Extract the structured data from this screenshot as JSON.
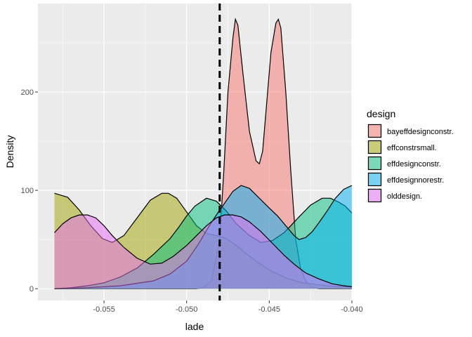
{
  "chart_data": {
    "type": "area",
    "subtype": "density",
    "xlabel": "lade",
    "ylabel": "Density",
    "xlim": [
      -0.059,
      -0.04
    ],
    "ylim": [
      -12,
      290
    ],
    "x_ticks": [
      -0.055,
      -0.05,
      -0.045,
      -0.04
    ],
    "x_tick_labels": [
      "-0.055",
      "-0.050",
      "-0.045",
      "-0.040"
    ],
    "y_ticks": [
      0,
      100,
      200
    ],
    "y_tick_labels": [
      "0",
      "100",
      "200"
    ],
    "grid": true,
    "fill_opacity": 0.5,
    "vline": {
      "x": -0.048,
      "style": "dashed",
      "color": "#000000"
    },
    "legend": {
      "title": "design",
      "position": "right",
      "entries": [
        {
          "label": "bayeffdesignconstr.",
          "color": "#F8766D"
        },
        {
          "label": "effconstrsmall.",
          "color": "#A3A500"
        },
        {
          "label": "effdesignconstr.",
          "color": "#00BF7D"
        },
        {
          "label": "effdesignnorestr.",
          "color": "#00B0F6"
        },
        {
          "label": "olddesign.",
          "color": "#E76BF3"
        }
      ]
    },
    "series": [
      {
        "name": "bayeffdesignconstr.",
        "color": "#F8766D",
        "x": [
          -0.058,
          -0.0494,
          -0.049,
          -0.0485,
          -0.048,
          -0.04775,
          -0.0475,
          -0.0472,
          -0.04705,
          -0.0469,
          -0.0466,
          -0.0462,
          -0.0458,
          -0.0456,
          -0.0454,
          -0.0452,
          -0.0449,
          -0.0446,
          -0.04445,
          -0.0443,
          -0.044,
          -0.0437,
          -0.0434,
          -0.0431,
          -0.0428,
          -0.0425,
          -0.042,
          -0.04
        ],
        "y": [
          0,
          0,
          1,
          8,
          50,
          120,
          200,
          255,
          274,
          268,
          220,
          160,
          130,
          127,
          140,
          180,
          240,
          270,
          274,
          265,
          200,
          120,
          50,
          20,
          8,
          2,
          0,
          0
        ]
      },
      {
        "name": "effconstrsmall.",
        "color": "#A3A500",
        "x": [
          -0.058,
          -0.0572,
          -0.0565,
          -0.0558,
          -0.0551,
          -0.0545,
          -0.0538,
          -0.053,
          -0.0522,
          -0.0515,
          -0.0511,
          -0.0506,
          -0.05,
          -0.0494,
          -0.0488,
          -0.0482,
          -0.0476,
          -0.047,
          -0.0465,
          -0.0458,
          -0.045,
          -0.044,
          -0.043,
          -0.042,
          -0.041,
          -0.04
        ],
        "y": [
          97,
          93,
          80,
          64,
          51,
          47,
          54,
          72,
          90,
          97,
          97,
          92,
          78,
          64,
          56,
          54,
          51,
          44,
          37,
          28,
          19,
          11,
          6,
          4,
          2,
          2
        ]
      },
      {
        "name": "effdesignconstr.",
        "color": "#00BF7D",
        "x": [
          -0.058,
          -0.057,
          -0.056,
          -0.055,
          -0.054,
          -0.053,
          -0.052,
          -0.051,
          -0.0505,
          -0.05,
          -0.0495,
          -0.0488,
          -0.0482,
          -0.0476,
          -0.047,
          -0.0462,
          -0.0455,
          -0.0448,
          -0.0441,
          -0.0437,
          -0.0432,
          -0.0425,
          -0.0418,
          -0.0413,
          -0.0408,
          -0.0404,
          -0.04
        ],
        "y": [
          0,
          1,
          3,
          6,
          12,
          21,
          35,
          51,
          62,
          74,
          84,
          92,
          89,
          79,
          66,
          54,
          47,
          49,
          57,
          64,
          73,
          85,
          92,
          92,
          88,
          84,
          77
        ]
      },
      {
        "name": "effdesignnorestr.",
        "color": "#00B0F6",
        "x": [
          -0.058,
          -0.056,
          -0.054,
          -0.052,
          -0.051,
          -0.05,
          -0.0493,
          -0.0487,
          -0.0482,
          -0.0477,
          -0.0472,
          -0.0467,
          -0.0462,
          -0.0456,
          -0.045,
          -0.0445,
          -0.044,
          -0.0435,
          -0.0432,
          -0.0428,
          -0.0424,
          -0.042,
          -0.0415,
          -0.041,
          -0.0405,
          -0.04
        ],
        "y": [
          0,
          1,
          3,
          8,
          15,
          28,
          45,
          62,
          75,
          87,
          99,
          105,
          102,
          92,
          82,
          74,
          64,
          54,
          50,
          52,
          58,
          67,
          79,
          92,
          101,
          105
        ]
      },
      {
        "name": "olddesign.",
        "color": "#E76BF3",
        "x": [
          -0.058,
          -0.0575,
          -0.057,
          -0.0565,
          -0.056,
          -0.0555,
          -0.055,
          -0.0545,
          -0.0538,
          -0.053,
          -0.0522,
          -0.0515,
          -0.0508,
          -0.05,
          -0.0494,
          -0.0488,
          -0.0482,
          -0.0477,
          -0.0472,
          -0.0467,
          -0.0462,
          -0.0455,
          -0.0448,
          -0.0441,
          -0.0435,
          -0.0428,
          -0.042,
          -0.0412,
          -0.0405,
          -0.04
        ],
        "y": [
          57,
          66,
          72,
          75,
          75,
          72,
          64,
          54,
          42,
          31,
          25,
          26,
          33,
          44,
          54,
          64,
          72,
          75,
          75,
          73,
          68,
          58,
          46,
          34,
          25,
          16,
          10,
          5,
          3,
          2
        ]
      }
    ]
  }
}
